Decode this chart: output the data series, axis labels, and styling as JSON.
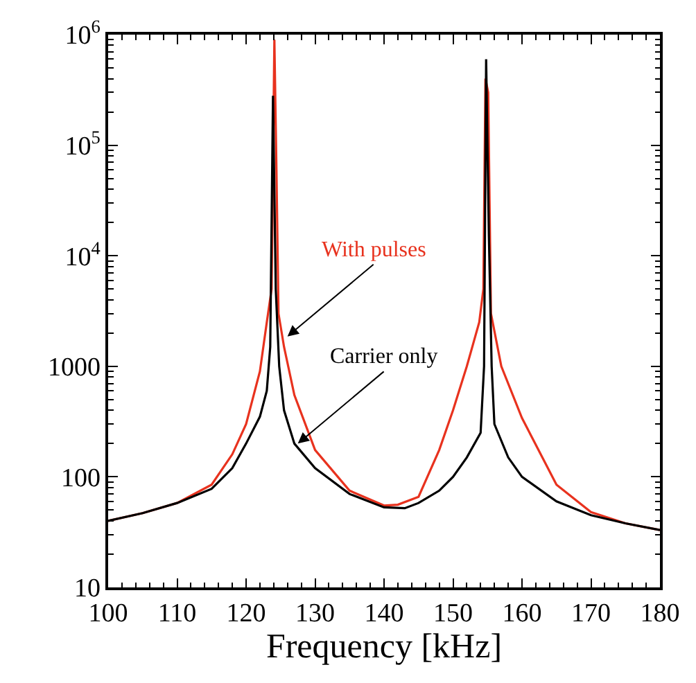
{
  "chart_data": {
    "type": "line",
    "xlabel": "Frequency [kHz]",
    "log": "y",
    "marker": "none",
    "line_style": "solid",
    "xlim": [
      100,
      180
    ],
    "xticks": [
      100,
      110,
      120,
      130,
      140,
      150,
      160,
      170,
      180
    ],
    "ylim": [
      10,
      1000000
    ],
    "yticks": [
      10,
      100,
      1000,
      {
        "value": 10000,
        "label": "10$^{4}$"
      },
      {
        "value": 100000,
        "label": "10$^{5}$"
      },
      {
        "value": 1000000,
        "label": "10$^{6}$"
      }
    ],
    "series": [
      {
        "color": "#e8321e",
        "x": [
          100,
          105,
          110,
          115,
          118,
          120,
          122,
          123,
          123.7,
          124.1,
          124.4,
          124.7,
          125.5,
          127,
          130,
          135,
          140,
          142,
          145,
          148,
          150,
          152,
          153.8,
          154.4,
          154.7,
          155.1,
          155.5,
          157,
          160,
          165,
          170,
          175,
          180
        ],
        "values": [
          40,
          47,
          58,
          85,
          160,
          300,
          900,
          2500,
          5000,
          900000,
          60000,
          3000,
          1500,
          550,
          175,
          75,
          55,
          56,
          66,
          175,
          400,
          1000,
          2500,
          5000,
          400000,
          300000,
          3000,
          1000,
          340,
          85,
          48,
          38,
          33
        ]
      },
      {
        "color": "#000000",
        "x": [
          100,
          105,
          110,
          115,
          118,
          120,
          122,
          123,
          123.5,
          123.9,
          124.3,
          124.8,
          125.5,
          127,
          130,
          135,
          140,
          143,
          145,
          148,
          150,
          152,
          154,
          154.5,
          154.8,
          155.2,
          155.6,
          156,
          158,
          160,
          165,
          170,
          175,
          180
        ],
        "values": [
          40,
          47,
          58,
          78,
          120,
          200,
          350,
          600,
          1500,
          280000,
          5000,
          1000,
          400,
          200,
          120,
          70,
          53,
          52,
          58,
          75,
          100,
          150,
          250,
          1000,
          600000,
          15000,
          1000,
          300,
          150,
          100,
          60,
          45,
          38,
          33
        ]
      }
    ],
    "annotations": [
      {
        "text": "With pulses",
        "x": 126,
        "y": 1860
      },
      {
        "text": "Carrier only",
        "x": 127.5,
        "y": 200
      }
    ]
  }
}
